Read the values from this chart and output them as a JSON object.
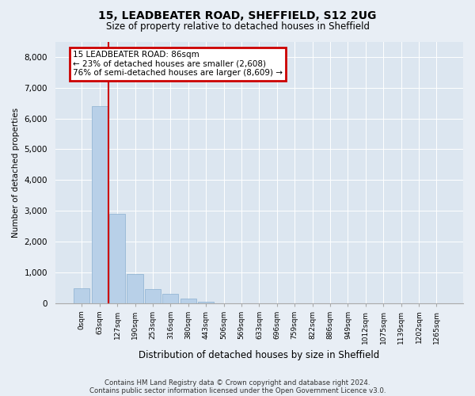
{
  "title1": "15, LEADBEATER ROAD, SHEFFIELD, S12 2UG",
  "title2": "Size of property relative to detached houses in Sheffield",
  "xlabel": "Distribution of detached houses by size in Sheffield",
  "ylabel": "Number of detached properties",
  "bar_color": "#b8d0e8",
  "bar_edge_color": "#8ab0d0",
  "vline_color": "#cc0000",
  "vline_x_index": 1.5,
  "annotation_title": "15 LEADBEATER ROAD: 86sqm",
  "annotation_line1": "← 23% of detached houses are smaller (2,608)",
  "annotation_line2": "76% of semi-detached houses are larger (8,609) →",
  "annotation_box_color": "#cc0000",
  "categories": [
    "0sqm",
    "63sqm",
    "127sqm",
    "190sqm",
    "253sqm",
    "316sqm",
    "380sqm",
    "443sqm",
    "506sqm",
    "569sqm",
    "633sqm",
    "696sqm",
    "759sqm",
    "822sqm",
    "886sqm",
    "949sqm",
    "1012sqm",
    "1075sqm",
    "1139sqm",
    "1202sqm",
    "1265sqm"
  ],
  "values": [
    480,
    6400,
    2900,
    950,
    450,
    300,
    130,
    50,
    0,
    0,
    0,
    0,
    0,
    0,
    0,
    0,
    0,
    0,
    0,
    0,
    0
  ],
  "ylim": [
    0,
    8500
  ],
  "yticks": [
    0,
    1000,
    2000,
    3000,
    4000,
    5000,
    6000,
    7000,
    8000
  ],
  "footer1": "Contains HM Land Registry data © Crown copyright and database right 2024.",
  "footer2": "Contains public sector information licensed under the Open Government Licence v3.0.",
  "bg_color": "#e8eef5",
  "plot_bg_color": "#dce6f0"
}
